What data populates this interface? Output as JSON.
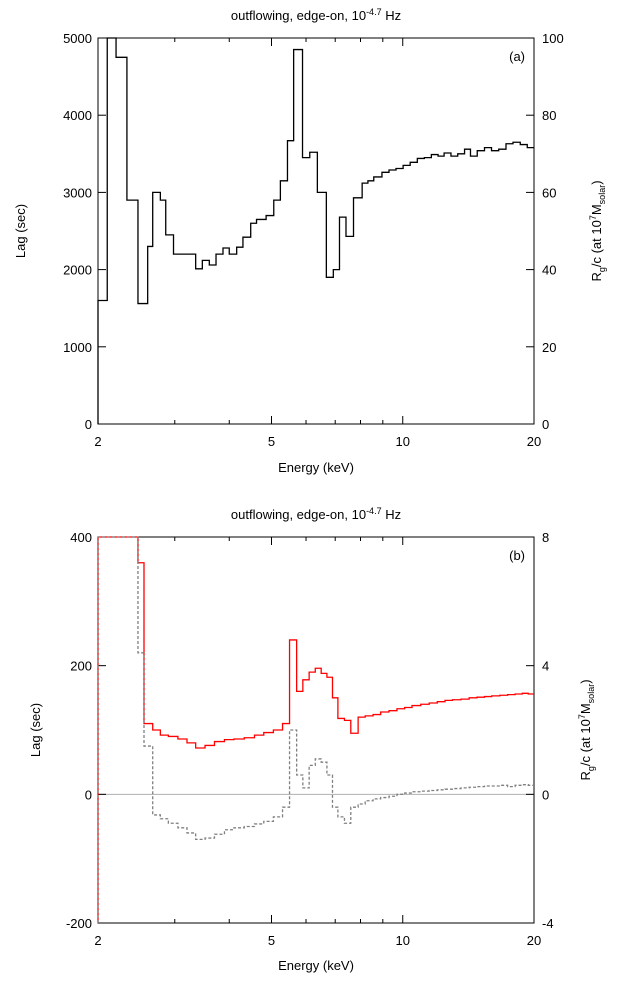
{
  "chart_data": [
    {
      "panel": "a",
      "type": "line",
      "step": true,
      "title": "outflowing, edge-on, 10^-4.7 Hz",
      "title_text": "outflowing, edge-on, 10",
      "title_exp": "-4.7",
      "title_unit": " Hz",
      "panel_label": "(a)",
      "xlabel": "Energy (keV)",
      "ylabel": "Lag (sec)",
      "y2label": "R_g/c (at 10^7 M_solar)",
      "xscale": "log",
      "xlim": [
        2,
        20
      ],
      "ylim": [
        0,
        5000
      ],
      "y2lim": [
        0,
        100
      ],
      "xticks": [
        2,
        5,
        10,
        20
      ],
      "yticks": [
        0,
        1000,
        2000,
        3000,
        4000,
        5000
      ],
      "y2ticks": [
        0,
        20,
        40,
        60,
        80,
        100
      ],
      "grid": false,
      "series": [
        {
          "color": "#000000",
          "dash": false,
          "edges": [
            2.0,
            2.1,
            2.2,
            2.33,
            2.47,
            2.6,
            2.67,
            2.78,
            2.86,
            2.98,
            3.16,
            3.35,
            3.47,
            3.6,
            3.73,
            3.87,
            4.0,
            4.16,
            4.3,
            4.48,
            4.62,
            4.86,
            5.06,
            5.24,
            5.44,
            5.62,
            5.89,
            6.12,
            6.37,
            6.68,
            6.93,
            7.16,
            7.41,
            7.71,
            8.07,
            8.32,
            8.58,
            8.96,
            9.3,
            9.65,
            10.02,
            10.4,
            10.8,
            11.21,
            11.63,
            12.05,
            12.44,
            12.9,
            13.37,
            13.86,
            14.3,
            14.82,
            15.4,
            15.98,
            16.6,
            17.25,
            17.9,
            18.6,
            19.3,
            20.0
          ],
          "values": [
            1600,
            5000,
            4750,
            2900,
            1560,
            2300,
            3000,
            2900,
            2450,
            2200,
            2200,
            2010,
            2120,
            2060,
            2200,
            2280,
            2200,
            2290,
            2420,
            2600,
            2650,
            2700,
            2900,
            3150,
            3670,
            4850,
            3450,
            3520,
            3000,
            1900,
            2000,
            2680,
            2430,
            2930,
            3120,
            3150,
            3200,
            3260,
            3290,
            3310,
            3350,
            3390,
            3440,
            3450,
            3490,
            3470,
            3510,
            3470,
            3500,
            3560,
            3470,
            3540,
            3580,
            3540,
            3560,
            3630,
            3650,
            3620,
            3580
          ]
        }
      ]
    },
    {
      "panel": "b",
      "type": "line",
      "step": true,
      "title": "outflowing, edge-on, 10^-4.7 Hz",
      "title_text": "outflowing, edge-on, 10",
      "title_exp": "-4.7",
      "title_unit": " Hz",
      "panel_label": "(b)",
      "xlabel": "Energy (keV)",
      "ylabel": "Lag (sec)",
      "y2label": "R_g/c (at 10^7 M_solar)",
      "xscale": "log",
      "xlim": [
        2,
        20
      ],
      "ylim": [
        -200,
        400
      ],
      "y2lim": [
        -4,
        8
      ],
      "xticks": [
        2,
        5,
        10,
        20
      ],
      "yticks": [
        -200,
        0,
        200,
        400
      ],
      "y2ticks": [
        -4,
        0,
        4,
        8
      ],
      "zero_line": true,
      "grid": false,
      "series": [
        {
          "color": "#ff0000",
          "dash": false,
          "edges": [
            2.0,
            2.47,
            2.55,
            2.67,
            2.78,
            2.9,
            3.05,
            3.2,
            3.35,
            3.52,
            3.7,
            3.9,
            4.1,
            4.33,
            4.57,
            4.8,
            5.05,
            5.3,
            5.5,
            5.71,
            5.9,
            6.1,
            6.3,
            6.5,
            6.7,
            6.9,
            7.1,
            7.35,
            7.6,
            7.9,
            8.2,
            8.55,
            8.9,
            9.3,
            9.7,
            10.1,
            10.5,
            11.0,
            11.5,
            12.0,
            12.5,
            13.0,
            13.6,
            14.2,
            14.8,
            15.4,
            16.0,
            16.7,
            17.4,
            18.1,
            18.8,
            19.4,
            20.0
          ],
          "values": [
            400,
            360,
            110,
            100,
            92,
            90,
            86,
            80,
            72,
            76,
            82,
            85,
            86,
            88,
            92,
            96,
            100,
            110,
            240,
            160,
            178,
            190,
            196,
            188,
            182,
            150,
            118,
            115,
            95,
            120,
            122,
            124,
            128,
            130,
            133,
            135,
            138,
            140,
            142,
            144,
            146,
            147,
            148,
            150,
            151,
            152,
            153,
            154,
            155,
            156,
            157,
            156
          ]
        },
        {
          "color": "#808080",
          "dash": true,
          "edges": [
            2.0,
            2.47,
            2.55,
            2.67,
            2.78,
            2.9,
            3.05,
            3.2,
            3.35,
            3.52,
            3.7,
            3.9,
            4.1,
            4.33,
            4.57,
            4.8,
            5.05,
            5.3,
            5.5,
            5.71,
            5.9,
            6.1,
            6.3,
            6.5,
            6.7,
            6.9,
            7.1,
            7.35,
            7.6,
            7.9,
            8.2,
            8.55,
            8.9,
            9.3,
            9.7,
            10.1,
            10.5,
            11.0,
            11.5,
            12.0,
            12.5,
            13.0,
            13.6,
            14.2,
            14.8,
            15.4,
            16.0,
            16.7,
            17.4,
            18.1,
            18.8,
            19.4,
            20.0
          ],
          "values": [
            400,
            220,
            75,
            -32,
            -38,
            -45,
            -52,
            -60,
            -70,
            -68,
            -62,
            -55,
            -52,
            -50,
            -46,
            -42,
            -35,
            -20,
            100,
            30,
            10,
            45,
            55,
            50,
            30,
            -20,
            -35,
            -45,
            -20,
            -15,
            -10,
            -7,
            -5,
            -3,
            0,
            2,
            4,
            5,
            6,
            7,
            8,
            9,
            10,
            11,
            12,
            13,
            13,
            14,
            12,
            14,
            15,
            14
          ]
        }
      ]
    }
  ]
}
